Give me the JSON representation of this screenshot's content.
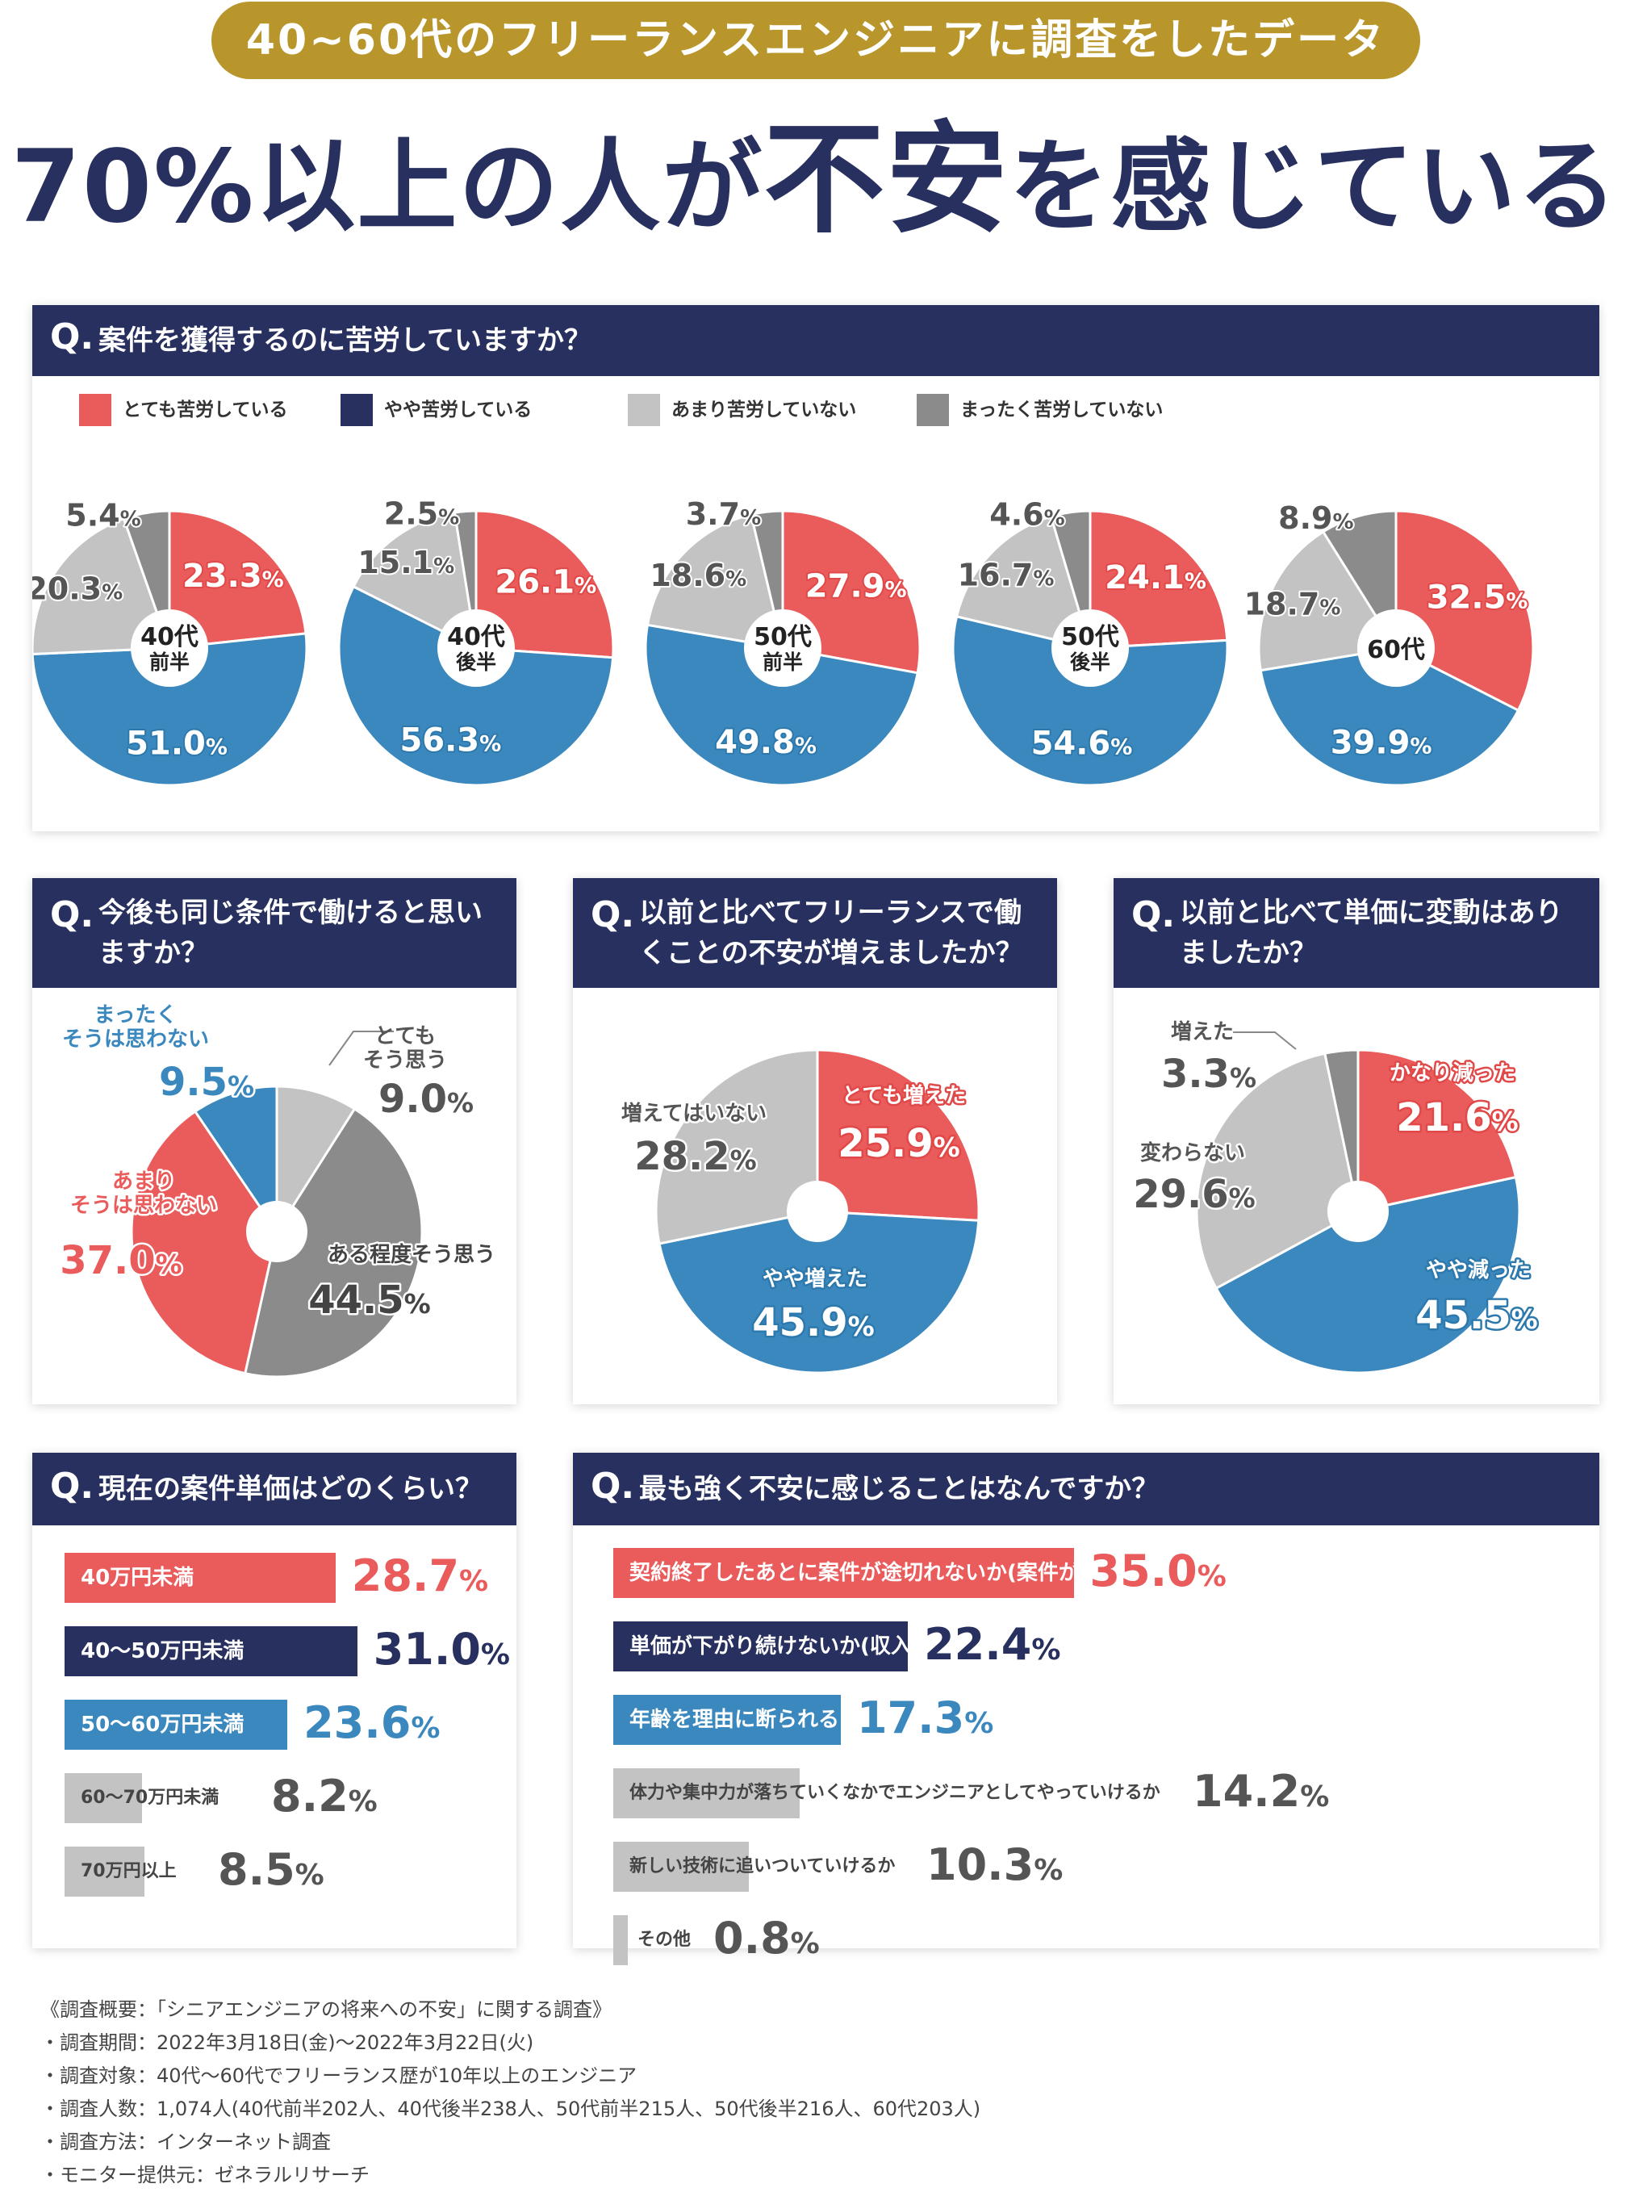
{
  "header": {
    "banner": "40~60代のフリーランスエンジニアに調査をしたデータ",
    "headline": [
      {
        "text": "70%以上の人が",
        "big": false
      },
      {
        "text": "不安",
        "big": true
      },
      {
        "text": "を感じている",
        "big": false
      }
    ]
  },
  "colors": {
    "red": "#ea5b5b",
    "navy": "#27305e",
    "blue": "#3a88bd",
    "lightgray": "#c3c3c3",
    "darkgray": "#8b8b8b"
  },
  "q1": {
    "q": "Q.",
    "title": "案件を獲得するのに苦労していますか？",
    "legend": [
      {
        "label": "とても苦労している",
        "color": "#ea5b5b"
      },
      {
        "label": "やや苦労している",
        "color": "#27305e"
      },
      {
        "label": "あまり苦労していない",
        "color": "#c3c3c3"
      },
      {
        "label": "まったく苦労していない",
        "color": "#8b8b8b"
      }
    ],
    "pies": [
      {
        "center": [
          "40代",
          "前半"
        ],
        "values": [
          23.3,
          51.0,
          20.3,
          5.4
        ]
      },
      {
        "center": [
          "40代",
          "後半"
        ],
        "values": [
          26.1,
          56.3,
          15.1,
          2.5
        ]
      },
      {
        "center": [
          "50代",
          "前半"
        ],
        "values": [
          27.9,
          49.8,
          18.6,
          3.7
        ]
      },
      {
        "center": [
          "50代",
          "後半"
        ],
        "values": [
          24.1,
          54.6,
          16.7,
          4.6
        ]
      },
      {
        "center": [
          "60代"
        ],
        "values": [
          32.5,
          39.9,
          18.7,
          8.9
        ]
      }
    ]
  },
  "q2": {
    "q": "Q.",
    "title": "今後も同じ条件で働けると思いますか？",
    "slices": [
      {
        "label": [
          "とても",
          "そう思う"
        ],
        "value": 9.0,
        "color": "#c3c3c3"
      },
      {
        "label": [
          "ある程度そう思う"
        ],
        "value": 44.5,
        "color": "#8b8b8b"
      },
      {
        "label": [
          "あまり",
          "そうは思わない"
        ],
        "value": 37.0,
        "color": "#ea5b5b"
      },
      {
        "label": [
          "まったく",
          "そうは思わない"
        ],
        "value": 9.5,
        "color": "#3a88bd"
      }
    ]
  },
  "q3": {
    "q": "Q.",
    "title": "以前と比べてフリーランスで働くことの不安が増えましたか？",
    "slices": [
      {
        "label": [
          "とても増えた"
        ],
        "value": 25.9,
        "color": "#ea5b5b"
      },
      {
        "label": [
          "やや増えた"
        ],
        "value": 45.9,
        "color": "#3a88bd"
      },
      {
        "label": [
          "増えてはいない"
        ],
        "value": 28.2,
        "color": "#c3c3c3"
      }
    ]
  },
  "q4": {
    "q": "Q.",
    "title": "以前と比べて単価に変動はありましたか？",
    "slices": [
      {
        "label": [
          "かなり減った"
        ],
        "value": 21.6,
        "color": "#ea5b5b"
      },
      {
        "label": [
          "やや減った"
        ],
        "value": 45.5,
        "color": "#3a88bd"
      },
      {
        "label": [
          "変わらない"
        ],
        "value": 29.6,
        "color": "#c3c3c3"
      },
      {
        "label": [
          "増えた"
        ],
        "value": 3.3,
        "color": "#8b8b8b"
      }
    ]
  },
  "q5": {
    "q": "Q.",
    "title": "現在の案件単価はどのくらい？",
    "bars": [
      {
        "label": "40万円未満",
        "value": 28.7,
        "color": "#ea5b5b"
      },
      {
        "label": "40〜50万円未満",
        "value": 31.0,
        "color": "#27305e"
      },
      {
        "label": "50〜60万円未満",
        "value": 23.6,
        "color": "#3a88bd"
      },
      {
        "label": "60〜70万円未満",
        "value": 8.2,
        "color": "#c3c3c3"
      },
      {
        "label": "70万円以上",
        "value": 8.5,
        "color": "#c3c3c3"
      }
    ]
  },
  "q6": {
    "q": "Q.",
    "title": "最も強く不安に感じることはなんですか？",
    "bars": [
      {
        "label": "契約終了したあとに案件が途切れないか(案件が安定するか)",
        "value": 35.0,
        "color": "#ea5b5b"
      },
      {
        "label": "単価が下がり続けないか(収入が減らないか)",
        "value": 22.4,
        "color": "#27305e"
      },
      {
        "label": "年齢を理由に断られることが多くならないか",
        "value": 17.3,
        "color": "#3a88bd"
      },
      {
        "label": "体力や集中力が落ちていくなかでエンジニアとしてやっていけるか",
        "value": 14.2,
        "color": "#c3c3c3"
      },
      {
        "label": "新しい技術に追いついていけるか",
        "value": 10.3,
        "color": "#c3c3c3"
      },
      {
        "label": "その他",
        "value": 0.8,
        "color": "#c3c3c3"
      }
    ]
  },
  "survey": [
    "《調査概要：「シニアエンジニアの将来への不安」に関する調査》",
    "・調査期間：2022年3月18日(金)〜2022年3月22日(火)",
    "・調査対象：40代〜60代でフリーランス歴が10年以上のエンジニア",
    "・調査人数：1,074人(40代前半202人、40代後半238人、50代前半215人、50代後半216人、60代203人)",
    "・調査方法：インターネット調査",
    "・モニター提供元：ゼネラルリサーチ"
  ],
  "chart_data": [
    {
      "type": "pie",
      "title": "案件を獲得するのに苦労していますか？ (40代前半)",
      "categories": [
        "とても苦労している",
        "やや苦労している",
        "あまり苦労していない",
        "まったく苦労していない"
      ],
      "values": [
        23.3,
        51.0,
        20.3,
        5.4
      ]
    },
    {
      "type": "pie",
      "title": "案件を獲得するのに苦労していますか？ (40代後半)",
      "categories": [
        "とても苦労している",
        "やや苦労している",
        "あまり苦労していない",
        "まったく苦労していない"
      ],
      "values": [
        26.1,
        56.3,
        15.1,
        2.5
      ]
    },
    {
      "type": "pie",
      "title": "案件を獲得するのに苦労していますか？ (50代前半)",
      "categories": [
        "とても苦労している",
        "やや苦労している",
        "あまり苦労していない",
        "まったく苦労していない"
      ],
      "values": [
        27.9,
        49.8,
        18.6,
        3.7
      ]
    },
    {
      "type": "pie",
      "title": "案件を獲得するのに苦労していますか？ (50代後半)",
      "categories": [
        "とても苦労している",
        "やや苦労している",
        "あまり苦労していない",
        "まったく苦労していない"
      ],
      "values": [
        24.1,
        54.6,
        16.7,
        4.6
      ]
    },
    {
      "type": "pie",
      "title": "案件を獲得するのに苦労していますか？ (60代)",
      "categories": [
        "とても苦労している",
        "やや苦労している",
        "あまり苦労していない",
        "まったく苦労していない"
      ],
      "values": [
        32.5,
        39.9,
        18.7,
        8.9
      ]
    },
    {
      "type": "pie",
      "title": "今後も同じ条件で働けると思いますか？",
      "categories": [
        "とてもそう思う",
        "ある程度そう思う",
        "あまりそうは思わない",
        "まったくそうは思わない"
      ],
      "values": [
        9.0,
        44.5,
        37.0,
        9.5
      ]
    },
    {
      "type": "pie",
      "title": "以前と比べてフリーランスで働くことの不安が増えましたか？",
      "categories": [
        "とても増えた",
        "やや増えた",
        "増えてはいない"
      ],
      "values": [
        25.9,
        45.9,
        28.2
      ]
    },
    {
      "type": "pie",
      "title": "以前と比べて単価に変動はありましたか？",
      "categories": [
        "かなり減った",
        "やや減った",
        "変わらない",
        "増えた"
      ],
      "values": [
        21.6,
        45.5,
        29.6,
        3.3
      ]
    },
    {
      "type": "bar",
      "title": "現在の案件単価はどのくらい？",
      "categories": [
        "40万円未満",
        "40〜50万円未満",
        "50〜60万円未満",
        "60〜70万円未満",
        "70万円以上"
      ],
      "values": [
        28.7,
        31.0,
        23.6,
        8.2,
        8.5
      ]
    },
    {
      "type": "bar",
      "title": "最も強く不安に感じることはなんですか？",
      "categories": [
        "契約終了したあとに案件が途切れないか(案件が安定するか)",
        "単価が下がり続けないか(収入が減らないか)",
        "年齢を理由に断られることが多くならないか",
        "体力や集中力が落ちていくなかでエンジニアとしてやっていけるか",
        "新しい技術に追いついていけるか",
        "その他"
      ],
      "values": [
        35.0,
        22.4,
        17.3,
        14.2,
        10.3,
        0.8
      ]
    }
  ]
}
